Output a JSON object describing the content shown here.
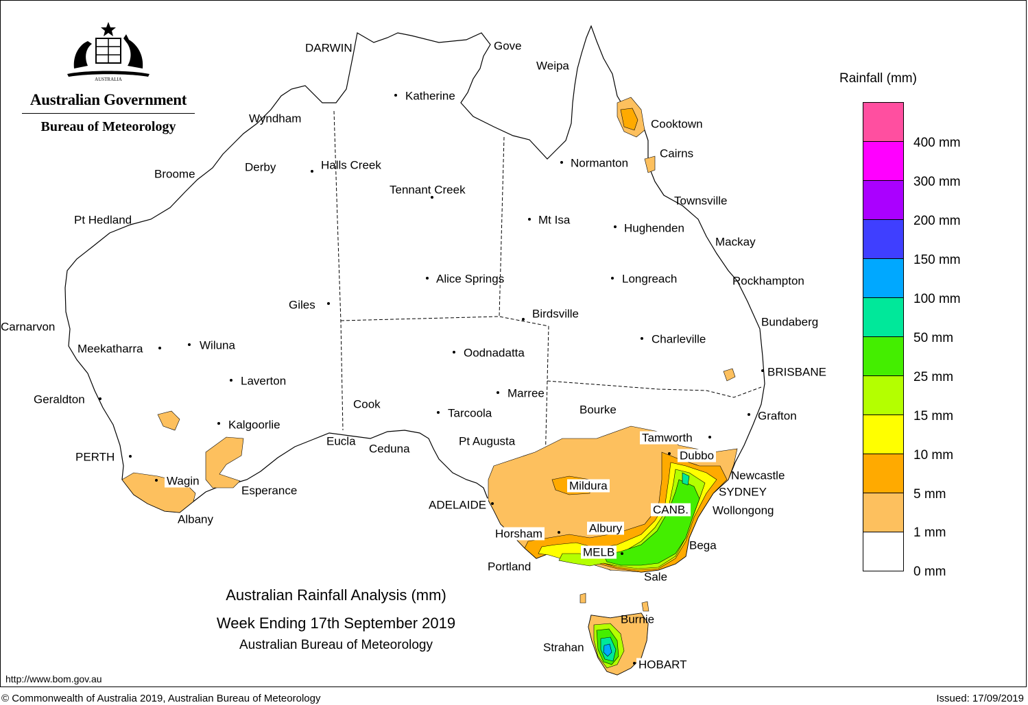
{
  "header": {
    "government": "Australian Government",
    "bureau": "Bureau of Meteorology",
    "crest_text": "AUSTRALIA"
  },
  "map": {
    "title": "Australian Rainfall Analysis (mm)",
    "subtitle": "Week Ending 17th September 2019",
    "credit": "Australian Bureau of Meteorology",
    "url": "http://www.bom.gov.au",
    "copyright": "© Commonwealth of Australia 2019, Australian Bureau of Meteorology",
    "issued": "Issued: 17/09/2019",
    "colors": {
      "land": "#ffffff",
      "outline": "#000000",
      "r1mm": "#fdc05e",
      "r5mm": "#ffaa00",
      "r10mm": "#ffff00",
      "r15mm": "#b4ff00",
      "r25mm": "#44ee00",
      "r50mm": "#00e89a",
      "r100mm": "#00a8ff"
    },
    "cities": [
      "DARWIN",
      "Gove",
      "Weipa",
      "Katherine",
      "Wyndham",
      "Cooktown",
      "Cairns",
      "Derby",
      "Halls Creek",
      "Broome",
      "Normanton",
      "Tennant Creek",
      "Townsville",
      "Pt Hedland",
      "Mt Isa",
      "Hughenden",
      "Mackay",
      "Alice Springs",
      "Longreach",
      "Rockhampton",
      "Giles",
      "Birdsville",
      "Bundaberg",
      "Carnarvon",
      "Charleville",
      "Meekatharra",
      "Wiluna",
      "Oodnadatta",
      "BRISBANE",
      "Laverton",
      "Marree",
      "Geraldton",
      "Cook",
      "Bourke",
      "Tarcoola",
      "Grafton",
      "Kalgoorlie",
      "Tamworth",
      "Eucla",
      "Pt Augusta",
      "Ceduna",
      "PERTH",
      "Dubbo",
      "Newcastle",
      "Wagin",
      "Mildura",
      "SYDNEY",
      "Esperance",
      "ADELAIDE",
      "CANB.",
      "Wollongong",
      "Albany",
      "Albury",
      "Horsham",
      "Bega",
      "MELB",
      "Portland",
      "Sale",
      "Burnie",
      "Strahan",
      "HOBART"
    ]
  },
  "legend": {
    "title": "Rainfall (mm)",
    "bins": [
      {
        "label": "400 mm",
        "color": "#ff4fa0"
      },
      {
        "label": "300 mm",
        "color": "#ff00ff"
      },
      {
        "label": "200 mm",
        "color": "#aa00ff"
      },
      {
        "label": "150 mm",
        "color": "#3f3fff"
      },
      {
        "label": "100 mm",
        "color": "#00a8ff"
      },
      {
        "label": "50 mm",
        "color": "#00e89a"
      },
      {
        "label": "25 mm",
        "color": "#44ee00"
      },
      {
        "label": "15 mm",
        "color": "#b4ff00"
      },
      {
        "label": "10 mm",
        "color": "#ffff00"
      },
      {
        "label": "5 mm",
        "color": "#ffaa00"
      },
      {
        "label": "1 mm",
        "color": "#fdc05e"
      },
      {
        "label": "0 mm",
        "color": "#ffffff"
      }
    ]
  }
}
